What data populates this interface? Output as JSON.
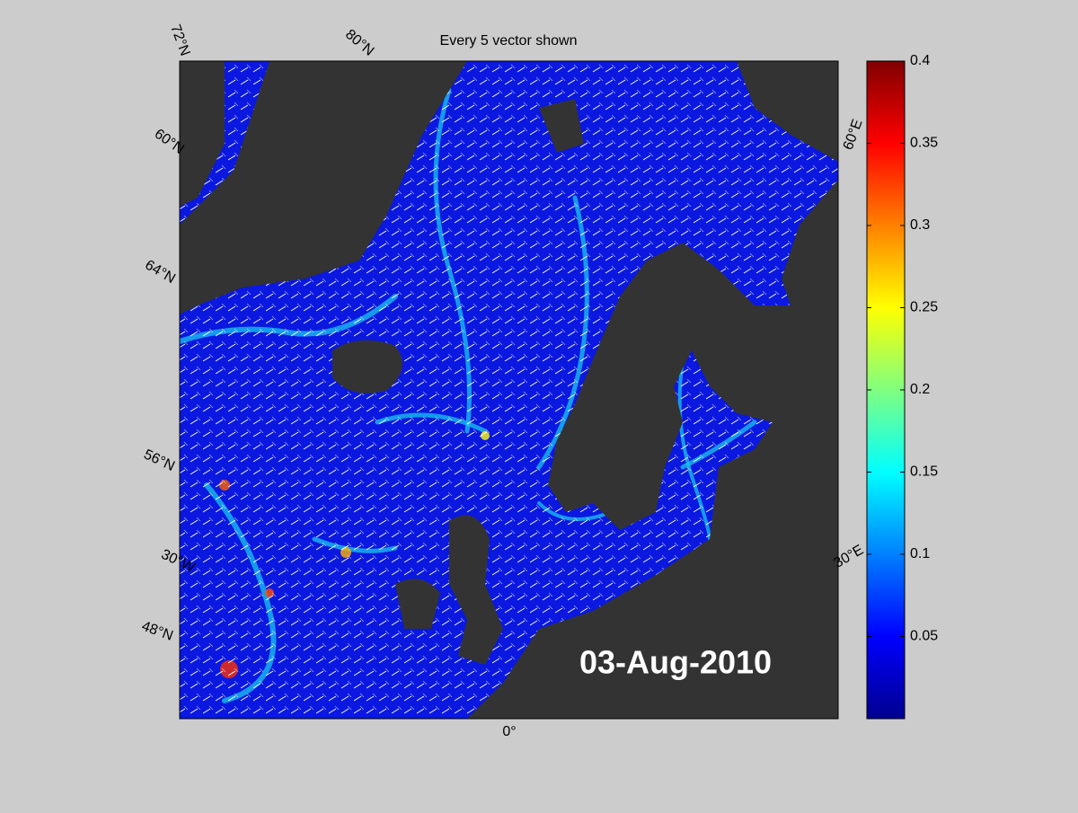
{
  "title": "Every 5 vector shown",
  "date_label": "03-Aug-2010",
  "map": {
    "lat_labels": [
      "72°N",
      "60°N",
      "64°N",
      "56°N",
      "48°N"
    ],
    "lon_labels": [
      "80°N",
      "30°W",
      "0°",
      "30°E",
      "60°E"
    ]
  },
  "colorbar": {
    "lim": [
      0,
      0.4
    ],
    "ticks": [
      0.05,
      0.1,
      0.15,
      0.2,
      0.25,
      0.3,
      0.35,
      0.4
    ],
    "colors": [
      "#00008f",
      "#0000ff",
      "#0080ff",
      "#00ffff",
      "#80ff80",
      "#ffff00",
      "#ff8000",
      "#ff0000",
      "#800000"
    ]
  }
}
